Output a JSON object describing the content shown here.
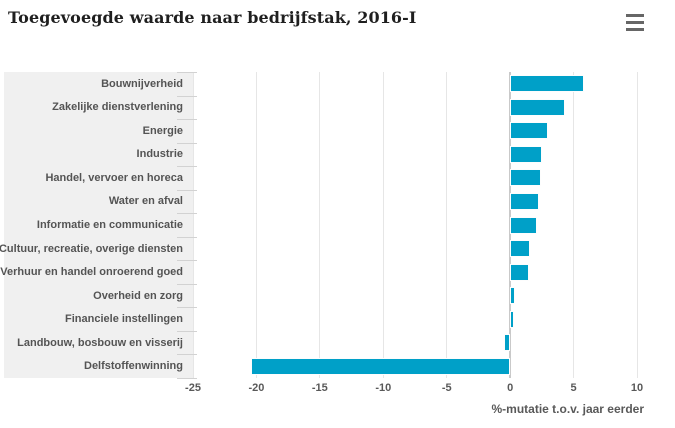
{
  "header": {
    "title": "Toegevoegde waarde naar bedrijfstak, 2016-I",
    "menu_icon": "hamburger-icon"
  },
  "chart_data": {
    "type": "bar",
    "orientation": "horizontal",
    "title": "Toegevoegde waarde naar bedrijfstak, 2016-I",
    "xlabel": "%-mutatie t.o.v. jaar eerder",
    "categories": [
      "Bouwnijverheid",
      "Zakelijke dienstverlening",
      "Energie",
      "Industrie",
      "Handel, vervoer en horeca",
      "Water en afval",
      "Informatie en communicatie",
      "Cultuur, recreatie, overige diensten",
      "Verhuur en handel onroerend goed",
      "Overheid en zorg",
      "Financiele instellingen",
      "Landbouw, bosbouw en visserij",
      "Delfstoffenwinning"
    ],
    "values": [
      5.8,
      4.3,
      3.0,
      2.5,
      2.4,
      2.3,
      2.1,
      1.6,
      1.5,
      0.4,
      0.3,
      -0.5,
      -20.4
    ],
    "xlim": [
      -25,
      10
    ],
    "x_ticks": [
      -25,
      -20,
      -15,
      -10,
      -5,
      0,
      5,
      10
    ],
    "grid": true,
    "legend": "none",
    "bar_color": "#00a0c8"
  },
  "colors": {
    "bar": "#00a0c8",
    "label_panel_bg": "#f0f0f0",
    "gridline": "#e6e6e6",
    "zero_line": "#c9c9c9",
    "category_tick": "#d2d2d2",
    "axis_text": "#595959",
    "title_text": "#1f1f1f",
    "menu_icon": "#666666"
  }
}
